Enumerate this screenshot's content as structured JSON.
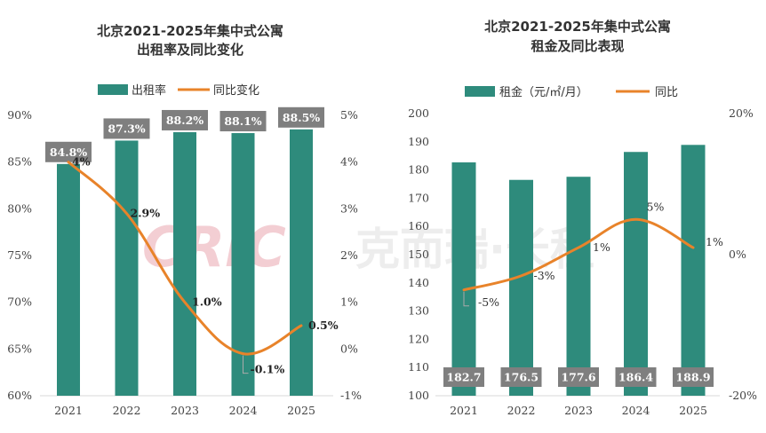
{
  "colors": {
    "bar": "#2e8b7c",
    "line": "#e8832a",
    "label_box": "#7f7f7f",
    "watermark": "#f2c9cf"
  },
  "watermark": {
    "logo": "CRIC",
    "text": "克而瑞·长租"
  },
  "chart_data": [
    {
      "type": "bar",
      "title": [
        "北京2021-2025年集中式公寓",
        "出租率及同比变化"
      ],
      "categories": [
        "2021",
        "2022",
        "2023",
        "2024",
        "2025"
      ],
      "series": [
        {
          "name": "出租率",
          "values": [
            84.8,
            87.3,
            88.2,
            88.1,
            88.5
          ],
          "labels": [
            "84.8%",
            "87.3%",
            "88.2%",
            "88.1%",
            "88.5%"
          ],
          "axis": "left"
        },
        {
          "name": "同比变化",
          "type": "line",
          "values": [
            4,
            2.9,
            1.0,
            -0.1,
            0.5
          ],
          "labels": [
            "4%",
            "2.9%",
            "1.0%",
            "-0.1%",
            "0.5%"
          ],
          "axis": "right"
        }
      ],
      "y_left": {
        "min": 60,
        "max": 90,
        "ticks": [
          "60%",
          "65%",
          "70%",
          "75%",
          "80%",
          "85%",
          "90%"
        ]
      },
      "y_right": {
        "min": -1,
        "max": 5,
        "ticks": [
          "-1%",
          "0%",
          "1%",
          "2%",
          "3%",
          "4%",
          "5%"
        ]
      }
    },
    {
      "type": "bar",
      "title": [
        "北京2021-2025年集中式公寓",
        "租金及同比表现"
      ],
      "categories": [
        "2021",
        "2022",
        "2023",
        "2024",
        "2025"
      ],
      "series": [
        {
          "name": "租金（元/㎡/月）",
          "values": [
            182.7,
            176.5,
            177.6,
            186.4,
            188.9
          ],
          "labels": [
            "182.7",
            "176.5",
            "177.6",
            "186.4",
            "188.9"
          ],
          "axis": "left"
        },
        {
          "name": "同比",
          "type": "line",
          "values": [
            -5,
            -3,
            1,
            5,
            1
          ],
          "labels": [
            "-5%",
            "-3%",
            "1%",
            "5%",
            "1%"
          ],
          "axis": "right"
        }
      ],
      "y_left": {
        "min": 100,
        "max": 200,
        "ticks": [
          "100",
          "110",
          "120",
          "130",
          "140",
          "150",
          "160",
          "170",
          "180",
          "190",
          "200"
        ]
      },
      "y_right": {
        "min": -20,
        "max": 20,
        "ticks": [
          "-20%",
          "0%",
          "20%"
        ]
      }
    }
  ]
}
